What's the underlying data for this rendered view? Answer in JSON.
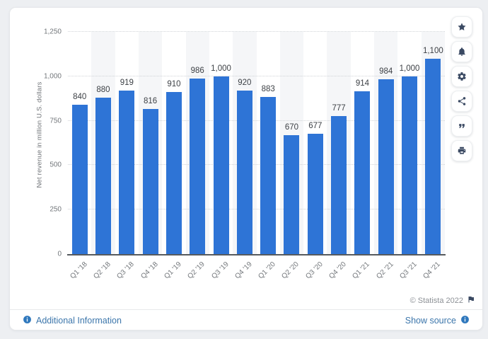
{
  "card": {
    "copyright": "© Statista 2022",
    "footer": {
      "additional_information": "Additional Information",
      "show_source": "Show source"
    }
  },
  "sidebar": {
    "buttons": [
      {
        "icon": "star-icon"
      },
      {
        "icon": "bell-icon"
      },
      {
        "icon": "gear-icon"
      },
      {
        "icon": "share-icon"
      },
      {
        "icon": "quote-icon"
      },
      {
        "icon": "print-icon"
      }
    ]
  },
  "colors": {
    "bar": "#2e74d6",
    "link_blue": "#3c76ab",
    "info_icon_blue": "#2f78bd",
    "icon_navy": "#3b4a63",
    "copyright_gray": "#8d9196"
  },
  "chart_data": {
    "type": "bar",
    "title": "",
    "ylabel": "Net revenue in million U.S. dollars",
    "xlabel": "",
    "categories": [
      "Q1 '18",
      "Q2 '18",
      "Q3 '18",
      "Q4 '18",
      "Q1 '19",
      "Q2 '19",
      "Q3 '19",
      "Q4 '19",
      "Q1 '20",
      "Q2 '20",
      "Q3 '20",
      "Q4 '20",
      "Q1 '21",
      "Q2 '21",
      "Q3 '21",
      "Q4 '21"
    ],
    "values": [
      840,
      880,
      919,
      816,
      910,
      986,
      1000,
      920,
      883,
      670,
      677,
      777,
      914,
      984,
      1000,
      1100
    ],
    "value_labels": [
      "840",
      "880",
      "919",
      "816",
      "910",
      "986",
      "1,000",
      "920",
      "883",
      "670",
      "677",
      "777",
      "914",
      "984",
      "1,000",
      "1,100"
    ],
    "ylim": [
      0,
      1250
    ],
    "yticks": [
      0,
      250,
      500,
      750,
      1000,
      1250
    ],
    "ytick_labels": [
      "0",
      "250",
      "500",
      "750",
      "1,000",
      "1,250"
    ],
    "grid": "horizontal-dotted",
    "plot_bands": "alternating-vertical-columns",
    "legend": "none"
  }
}
